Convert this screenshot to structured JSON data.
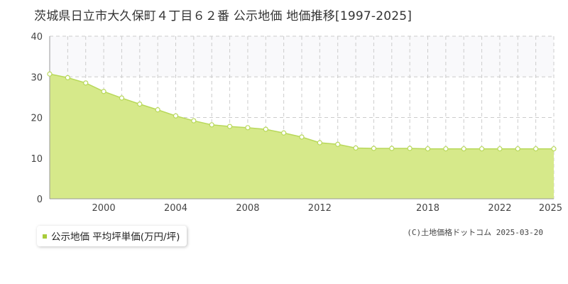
{
  "title": "茨城県日立市大久保町４丁目６２番 公示地価 地価推移[1997-2025]",
  "legend": {
    "label": "公示地価 平均坪単価(万円/坪)"
  },
  "copyright": "(C)土地価格ドットコム 2025-03-20",
  "colors": {
    "fill": "#d6e98a",
    "line": "#b8d85a",
    "marker_fill": "#ffffff",
    "grid": "#cccccc",
    "axis": "#999999",
    "legend_marker": "#a8cc3a"
  },
  "chart_data": {
    "type": "area",
    "title": "茨城県日立市大久保町４丁目６２番 公示地価 地価推移[1997-2025]",
    "xlabel": "",
    "ylabel": "",
    "xlim": [
      1997,
      2025
    ],
    "ylim": [
      0,
      40
    ],
    "y_ticks": [
      0,
      10,
      20,
      30,
      40
    ],
    "x_ticks": [
      2000,
      2004,
      2008,
      2012,
      2018,
      2022,
      2025
    ],
    "grid": true,
    "legend_position": "bottom-left",
    "series": [
      {
        "name": "公示地価 平均坪単価(万円/坪)",
        "x": [
          1997,
          1998,
          1999,
          2000,
          2001,
          2002,
          2003,
          2004,
          2005,
          2006,
          2007,
          2008,
          2009,
          2010,
          2011,
          2012,
          2013,
          2014,
          2015,
          2016,
          2017,
          2018,
          2019,
          2020,
          2021,
          2022,
          2023,
          2024,
          2025
        ],
        "values": [
          30.7,
          29.8,
          28.5,
          26.4,
          24.8,
          23.3,
          21.9,
          20.4,
          19.2,
          18.2,
          17.8,
          17.5,
          17.1,
          16.2,
          15.2,
          13.8,
          13.4,
          12.5,
          12.4,
          12.4,
          12.4,
          12.3,
          12.3,
          12.3,
          12.3,
          12.3,
          12.3,
          12.3,
          12.3
        ]
      }
    ]
  }
}
